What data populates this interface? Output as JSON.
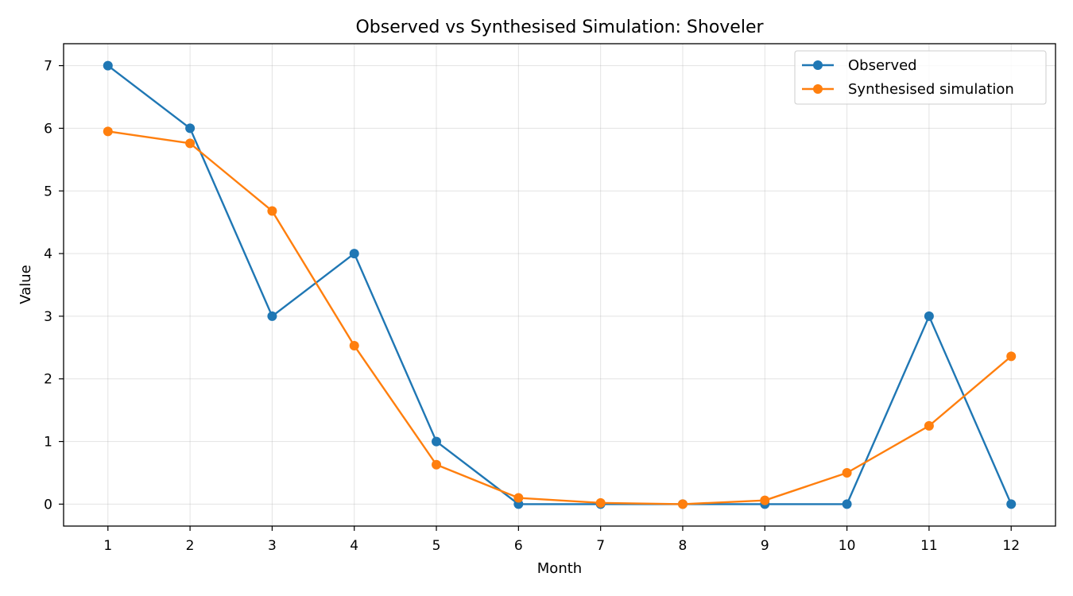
{
  "chart_data": {
    "type": "line",
    "title": "Observed vs Synthesised Simulation: Shoveler",
    "xlabel": "Month",
    "ylabel": "Value",
    "x": [
      1,
      2,
      3,
      4,
      5,
      6,
      7,
      8,
      9,
      10,
      11,
      12
    ],
    "xticks": [
      "1",
      "2",
      "3",
      "4",
      "5",
      "6",
      "7",
      "8",
      "9",
      "10",
      "11",
      "12"
    ],
    "yticks": [
      "0",
      "1",
      "2",
      "3",
      "4",
      "5",
      "6",
      "7"
    ],
    "xlim": [
      0.46,
      12.54
    ],
    "ylim": [
      -0.35,
      7.35
    ],
    "grid": true,
    "legend_position": "top-right",
    "series": [
      {
        "name": "Observed",
        "color": "#1f77b4",
        "values": [
          7,
          6,
          3,
          4,
          1,
          0,
          0,
          0,
          0,
          0,
          3,
          0
        ]
      },
      {
        "name": "Synthesised simulation",
        "color": "#ff7f0e",
        "values": [
          5.95,
          5.76,
          4.68,
          2.53,
          0.63,
          0.1,
          0.02,
          0.0,
          0.06,
          0.5,
          1.25,
          2.36
        ]
      }
    ]
  }
}
